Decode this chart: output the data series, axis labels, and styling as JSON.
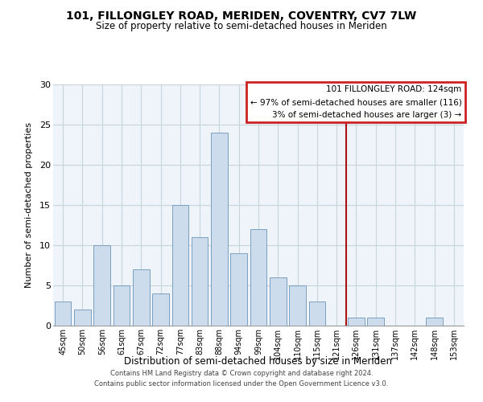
{
  "title": "101, FILLONGLEY ROAD, MERIDEN, COVENTRY, CV7 7LW",
  "subtitle": "Size of property relative to semi-detached houses in Meriden",
  "xlabel": "Distribution of semi-detached houses by size in Meriden",
  "ylabel": "Number of semi-detached properties",
  "categories": [
    "45sqm",
    "50sqm",
    "56sqm",
    "61sqm",
    "67sqm",
    "72sqm",
    "77sqm",
    "83sqm",
    "88sqm",
    "94sqm",
    "99sqm",
    "104sqm",
    "110sqm",
    "115sqm",
    "121sqm",
    "126sqm",
    "131sqm",
    "137sqm",
    "142sqm",
    "148sqm",
    "153sqm"
  ],
  "values": [
    3,
    2,
    10,
    5,
    7,
    4,
    15,
    11,
    24,
    9,
    12,
    6,
    5,
    3,
    0,
    1,
    1,
    0,
    0,
    1,
    0
  ],
  "bar_color": "#ccdcec",
  "bar_edge_color": "#7aa0c0",
  "highlight_line_index": 15,
  "ylim": [
    0,
    30
  ],
  "yticks": [
    0,
    5,
    10,
    15,
    20,
    25,
    30
  ],
  "annotation_title": "101 FILLONGLEY ROAD: 124sqm",
  "annotation_line1": "← 97% of semi-detached houses are smaller (116)",
  "annotation_line2": "3% of semi-detached houses are larger (3) →",
  "annotation_box_color": "#ffffff",
  "annotation_border_color": "#cc2222",
  "footer_line1": "Contains HM Land Registry data © Crown copyright and database right 2024.",
  "footer_line2": "Contains public sector information licensed under the Open Government Licence v3.0.",
  "plot_bg_color": "#eef4f9",
  "fig_bg_color": "#ffffff",
  "grid_color": "#c8d4de",
  "red_line_color": "#aa1111"
}
